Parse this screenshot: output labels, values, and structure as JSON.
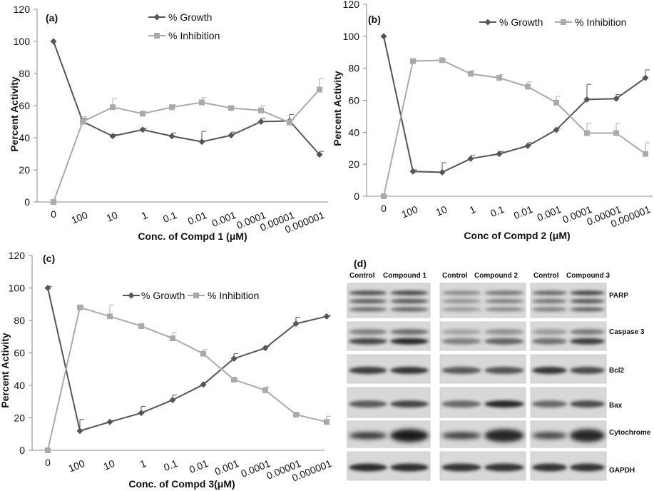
{
  "colors": {
    "growth": "#555555",
    "inhibition": "#aaaaaa",
    "axis": "#888888"
  },
  "chart_data": [
    {
      "type": "line",
      "panel_label": "(a)",
      "xlabel": "Conc. of Compd 1 (μM)",
      "ylabel": "Percent Activity",
      "ylim": [
        0,
        120
      ],
      "yticks": [
        "0",
        "20",
        "40",
        "60",
        "80",
        "100",
        "120"
      ],
      "categories": [
        "0",
        "100",
        "10",
        "1",
        "0.1",
        "0.01",
        "0.001",
        "0.0001",
        "0.00001",
        "0.000001"
      ],
      "legend_position": "top-center",
      "series": [
        {
          "name": "% Growth",
          "marker": "diamond",
          "values": [
            100,
            50,
            41,
            45,
            41,
            37.5,
            41.5,
            50,
            50.5,
            29.5
          ],
          "errors": [
            0,
            2,
            1,
            1,
            2,
            6.5,
            2,
            2,
            4,
            2
          ]
        },
        {
          "name": "% Inhibition",
          "marker": "square",
          "values": [
            0,
            50,
            59,
            55,
            59,
            62,
            58.5,
            57,
            49.5,
            70
          ],
          "errors": [
            0,
            3,
            5.5,
            1.5,
            1.5,
            3,
            1,
            3,
            2,
            7
          ]
        }
      ]
    },
    {
      "type": "line",
      "panel_label": "(b)",
      "xlabel": "Conc of Compd 2 (μM)",
      "ylabel": "Percent Activity",
      "ylim": [
        0,
        120
      ],
      "yticks": [
        "0",
        "20",
        "40",
        "60",
        "80",
        "100",
        "120"
      ],
      "categories": [
        "0",
        "100",
        "10",
        "1",
        "0.1",
        "0.01",
        "0.001",
        "0.0001",
        "0.00001",
        "0.000001"
      ],
      "legend_position": "top-right",
      "series": [
        {
          "name": "% Growth",
          "marker": "diamond",
          "values": [
            100,
            15.5,
            15,
            23.5,
            26.5,
            31.5,
            41.5,
            60.5,
            61,
            74
          ],
          "errors": [
            0,
            1,
            6,
            2,
            1.5,
            2,
            1,
            9.5,
            2.5,
            5
          ]
        },
        {
          "name": "% Inhibition",
          "marker": "square",
          "values": [
            0,
            84.5,
            85,
            76.5,
            74,
            68.5,
            58.5,
            39.5,
            39.5,
            26.5
          ],
          "errors": [
            0,
            0.5,
            0.5,
            2,
            2,
            3,
            4,
            6,
            6,
            7
          ]
        }
      ]
    },
    {
      "type": "line",
      "panel_label": "(c)",
      "xlabel": "Conc. of Compd 3(μM)",
      "ylabel": "Percent Activity",
      "ylim": [
        0,
        120
      ],
      "yticks": [
        "0",
        "20",
        "40",
        "60",
        "80",
        "100",
        "120"
      ],
      "categories": [
        "0",
        "100",
        "10",
        "1",
        "0.1",
        "0.01",
        "0.001",
        "0.0001",
        "0.00001",
        "0.000001"
      ],
      "legend_position": "top-center",
      "series": [
        {
          "name": "% Growth",
          "marker": "diamond",
          "values": [
            100,
            12,
            17.5,
            23,
            31,
            40.5,
            56.5,
            63,
            78,
            82.5
          ],
          "errors": [
            1,
            7,
            0.5,
            4,
            3,
            1.5,
            3,
            1,
            4,
            0.5
          ]
        },
        {
          "name": "% Inhibition",
          "marker": "square",
          "values": [
            0,
            88,
            82.5,
            76.5,
            69,
            59.5,
            43.5,
            37,
            22,
            17.5
          ],
          "errors": [
            0,
            0.5,
            7,
            0.5,
            3.5,
            2.5,
            0.5,
            2,
            0.5,
            3.5
          ]
        }
      ]
    }
  ],
  "blot": {
    "panel_label": "(d)",
    "groups": [
      {
        "control_label": "Control",
        "compound_label": "Compound 1"
      },
      {
        "control_label": "Control",
        "compound_label": "Compound 2"
      },
      {
        "control_label": "Control",
        "compound_label": "Compound 3"
      }
    ],
    "rows": [
      {
        "label": "PARP"
      },
      {
        "label": "Caspase 3"
      },
      {
        "label": "Bcl2"
      },
      {
        "label": "Bax"
      },
      {
        "label": "Cytochrome"
      },
      {
        "label": "GAPDH"
      }
    ]
  }
}
